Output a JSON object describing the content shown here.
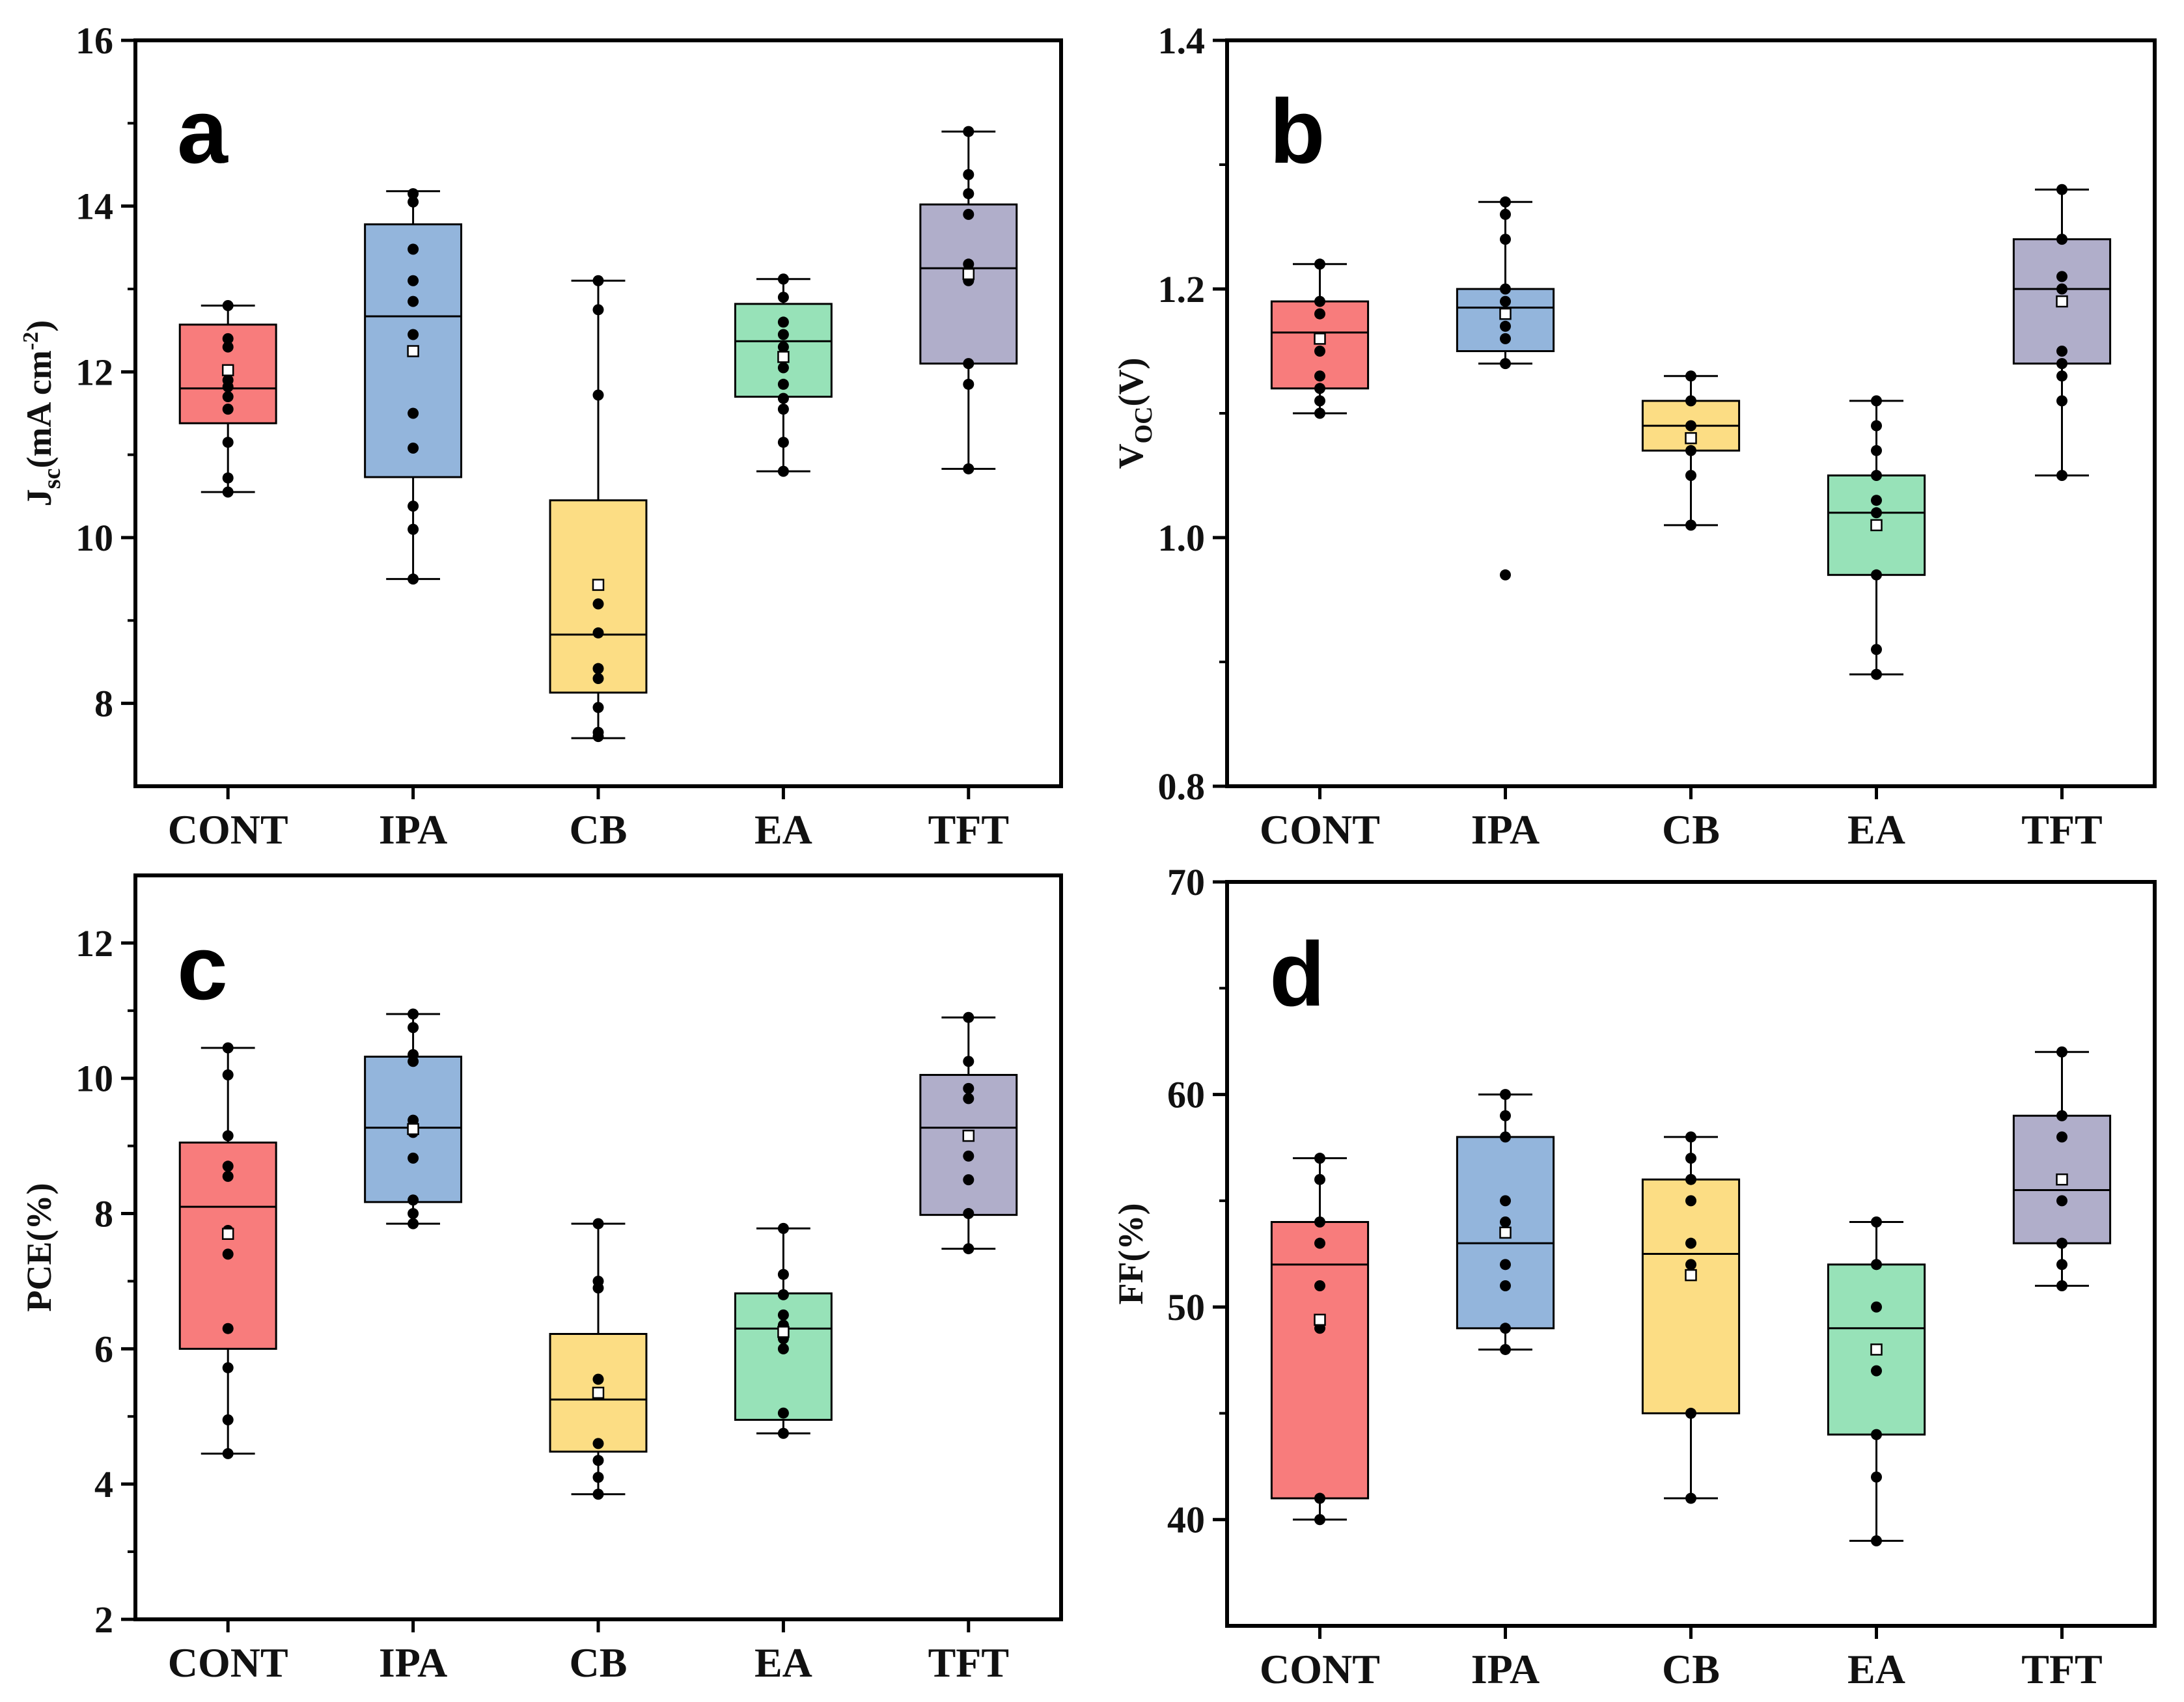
{
  "chart_data": [
    {
      "type": "box",
      "panel": "a",
      "categories": [
        "CONT",
        "IPA",
        "CB",
        "EA",
        "TFT"
      ],
      "ylabel": {
        "main": "J",
        "sub": "sc",
        "rest": "(mA cm",
        "sup": "-2",
        "end": ")"
      },
      "ylim": [
        7,
        16
      ],
      "yticks": [
        "8",
        "10",
        "12",
        "14",
        "16"
      ],
      "tick_values": [
        8,
        10,
        12,
        14,
        16
      ],
      "boxes": [
        {
          "name": "CONT",
          "color": "#F87C7C",
          "whisker_low": 10.55,
          "q1": 11.38,
          "median": 11.8,
          "q3": 12.57,
          "whisker_high": 12.8,
          "mean": 12.02,
          "points": [
            10.55,
            10.72,
            11.15,
            11.55,
            11.7,
            11.82,
            11.9,
            12.0,
            12.3,
            12.4,
            12.8
          ]
        },
        {
          "name": "IPA",
          "color": "#93B5DC",
          "whisker_low": 9.5,
          "q1": 10.73,
          "median": 12.67,
          "q3": 13.78,
          "whisker_high": 14.18,
          "mean": 12.25,
          "points": [
            9.5,
            10.1,
            10.38,
            11.08,
            11.5,
            12.45,
            12.85,
            13.1,
            13.48,
            14.05,
            14.15
          ]
        },
        {
          "name": "CB",
          "color": "#FCDD84",
          "whisker_low": 7.58,
          "q1": 8.13,
          "median": 8.83,
          "q3": 10.45,
          "whisker_high": 13.1,
          "mean": 9.43,
          "points": [
            7.6,
            7.65,
            7.95,
            8.3,
            8.42,
            8.85,
            9.2,
            11.72,
            12.75,
            13.1
          ]
        },
        {
          "name": "EA",
          "color": "#97E2B8",
          "whisker_low": 10.8,
          "q1": 11.7,
          "median": 12.37,
          "q3": 12.82,
          "whisker_high": 13.12,
          "mean": 12.18,
          "points": [
            10.8,
            11.15,
            11.55,
            11.68,
            11.85,
            12.05,
            12.3,
            12.45,
            12.6,
            12.9,
            13.12
          ]
        },
        {
          "name": "TFT",
          "color": "#B0AECA",
          "whisker_low": 10.83,
          "q1": 12.1,
          "median": 13.25,
          "q3": 14.02,
          "whisker_high": 14.9,
          "mean": 13.18,
          "points": [
            10.83,
            11.85,
            12.1,
            13.1,
            13.2,
            13.3,
            13.9,
            14.15,
            14.38,
            14.9
          ]
        }
      ]
    },
    {
      "type": "box",
      "panel": "b",
      "categories": [
        "CONT",
        "IPA",
        "CB",
        "EA",
        "TFT"
      ],
      "ylabel": {
        "main": "V",
        "sub": "OC",
        "rest": "(V)",
        "sup": "",
        "end": ""
      },
      "ylim": [
        0.8,
        1.4
      ],
      "yticks": [
        "0.8",
        "1.0",
        "1.2",
        "1.4"
      ],
      "tick_values": [
        0.8,
        1.0,
        1.2,
        1.4
      ],
      "boxes": [
        {
          "name": "CONT",
          "color": "#F87C7C",
          "whisker_low": 1.1,
          "q1": 1.12,
          "median": 1.165,
          "q3": 1.19,
          "whisker_high": 1.22,
          "mean": 1.16,
          "points": [
            1.1,
            1.11,
            1.12,
            1.13,
            1.15,
            1.16,
            1.18,
            1.19,
            1.22
          ]
        },
        {
          "name": "IPA",
          "color": "#93B5DC",
          "whisker_low": 1.14,
          "q1": 1.15,
          "median": 1.185,
          "q3": 1.2,
          "whisker_high": 1.27,
          "mean": 1.18,
          "points": [
            0.97,
            1.14,
            1.16,
            1.17,
            1.18,
            1.19,
            1.2,
            1.24,
            1.26,
            1.27
          ]
        },
        {
          "name": "CB",
          "color": "#FCDD84",
          "whisker_low": 1.01,
          "q1": 1.07,
          "median": 1.09,
          "q3": 1.11,
          "whisker_high": 1.13,
          "mean": 1.08,
          "points": [
            1.01,
            1.05,
            1.07,
            1.08,
            1.09,
            1.11,
            1.13
          ]
        },
        {
          "name": "EA",
          "color": "#97E2B8",
          "whisker_low": 0.89,
          "q1": 0.97,
          "median": 1.02,
          "q3": 1.05,
          "whisker_high": 1.11,
          "mean": 1.01,
          "points": [
            0.89,
            0.91,
            0.97,
            1.01,
            1.02,
            1.03,
            1.05,
            1.07,
            1.09,
            1.11
          ]
        },
        {
          "name": "TFT",
          "color": "#B0AECA",
          "whisker_low": 1.05,
          "q1": 1.14,
          "median": 1.2,
          "q3": 1.24,
          "whisker_high": 1.28,
          "mean": 1.19,
          "points": [
            1.05,
            1.11,
            1.13,
            1.14,
            1.15,
            1.19,
            1.2,
            1.21,
            1.24,
            1.28
          ]
        }
      ]
    },
    {
      "type": "box",
      "panel": "c",
      "categories": [
        "CONT",
        "IPA",
        "CB",
        "EA",
        "TFT"
      ],
      "ylabel": {
        "main": "PCE(%)",
        "sub": "",
        "rest": "",
        "sup": "",
        "end": ""
      },
      "ylim": [
        2,
        13
      ],
      "yticks": [
        "2",
        "4",
        "6",
        "8",
        "10",
        "12"
      ],
      "tick_values": [
        2,
        4,
        6,
        8,
        10,
        12
      ],
      "boxes": [
        {
          "name": "CONT",
          "color": "#F87C7C",
          "whisker_low": 4.45,
          "q1": 6.0,
          "median": 8.1,
          "q3": 9.05,
          "whisker_high": 10.45,
          "mean": 7.7,
          "points": [
            4.45,
            4.95,
            5.72,
            6.3,
            7.4,
            7.75,
            8.55,
            8.7,
            9.15,
            10.05,
            10.45
          ]
        },
        {
          "name": "IPA",
          "color": "#93B5DC",
          "whisker_low": 7.85,
          "q1": 8.17,
          "median": 9.27,
          "q3": 10.32,
          "whisker_high": 10.95,
          "mean": 9.25,
          "points": [
            7.85,
            8.0,
            8.2,
            8.82,
            9.2,
            9.38,
            10.25,
            10.35,
            10.75,
            10.95
          ]
        },
        {
          "name": "CB",
          "color": "#FCDD84",
          "whisker_low": 3.85,
          "q1": 4.48,
          "median": 5.25,
          "q3": 6.22,
          "whisker_high": 7.85,
          "mean": 5.35,
          "points": [
            3.85,
            4.1,
            4.35,
            4.6,
            5.35,
            5.55,
            6.9,
            7.0,
            7.85
          ]
        },
        {
          "name": "EA",
          "color": "#97E2B8",
          "whisker_low": 4.75,
          "q1": 4.95,
          "median": 6.3,
          "q3": 6.82,
          "whisker_high": 7.78,
          "mean": 6.25,
          "points": [
            4.75,
            5.05,
            6.0,
            6.15,
            6.35,
            6.5,
            6.8,
            7.1,
            7.78
          ]
        },
        {
          "name": "TFT",
          "color": "#B0AECA",
          "whisker_low": 7.48,
          "q1": 7.98,
          "median": 9.27,
          "q3": 10.05,
          "whisker_high": 10.9,
          "mean": 9.15,
          "points": [
            7.48,
            8.0,
            8.5,
            8.85,
            9.7,
            9.85,
            10.25,
            10.9
          ]
        }
      ]
    },
    {
      "type": "box",
      "panel": "d",
      "categories": [
        "CONT",
        "IPA",
        "CB",
        "EA",
        "TFT"
      ],
      "ylabel": {
        "main": "FF(%)",
        "sub": "",
        "rest": "",
        "sup": "",
        "end": ""
      },
      "ylim": [
        35,
        70
      ],
      "yticks": [
        "40",
        "50",
        "60",
        "70"
      ],
      "tick_values": [
        40,
        50,
        60,
        70
      ],
      "boxes": [
        {
          "name": "CONT",
          "color": "#F87C7C",
          "whisker_low": 40,
          "q1": 41,
          "median": 52,
          "q3": 54,
          "whisker_high": 57,
          "mean": 49.4,
          "points": [
            40,
            41,
            49,
            51,
            53,
            54,
            56,
            57
          ]
        },
        {
          "name": "IPA",
          "color": "#93B5DC",
          "whisker_low": 48,
          "q1": 49,
          "median": 53,
          "q3": 58,
          "whisker_high": 60,
          "mean": 53.5,
          "points": [
            48,
            49,
            51,
            52,
            54,
            55,
            58,
            59,
            60
          ]
        },
        {
          "name": "CB",
          "color": "#FCDD84",
          "whisker_low": 41,
          "q1": 45,
          "median": 52.5,
          "q3": 56,
          "whisker_high": 58,
          "mean": 51.5,
          "points": [
            41,
            45,
            52,
            53,
            55,
            56,
            57,
            58
          ]
        },
        {
          "name": "EA",
          "color": "#97E2B8",
          "whisker_low": 39,
          "q1": 44,
          "median": 49,
          "q3": 52,
          "whisker_high": 54,
          "mean": 48,
          "points": [
            39,
            42,
            44,
            47,
            48,
            50,
            52,
            54
          ]
        },
        {
          "name": "TFT",
          "color": "#B0AECA",
          "whisker_low": 51,
          "q1": 53,
          "median": 55.5,
          "q3": 59,
          "whisker_high": 62,
          "mean": 56,
          "points": [
            51,
            52,
            53,
            55,
            56,
            58,
            59,
            62
          ]
        }
      ]
    }
  ]
}
